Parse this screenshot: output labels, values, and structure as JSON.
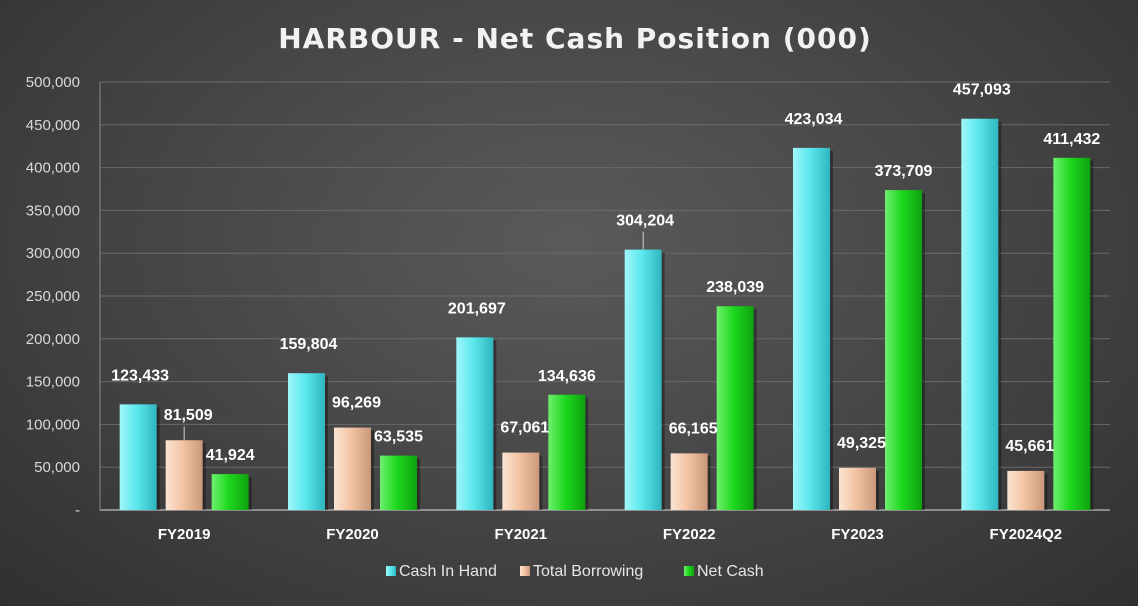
{
  "chart_data": {
    "type": "bar",
    "title": "HARBOUR - Net Cash Position (000)",
    "xlabel": "",
    "ylabel": "",
    "categories": [
      "FY2019",
      "FY2020",
      "FY2021",
      "FY2022",
      "FY2023",
      "FY2024Q2"
    ],
    "series": [
      {
        "name": "Cash In Hand",
        "values": [
          123433,
          159804,
          201697,
          304204,
          423034,
          457093
        ],
        "labels": [
          "123,433",
          "159,804",
          "201,697",
          "304,204",
          "423,034",
          "457,093"
        ],
        "color": "#5ce8ee"
      },
      {
        "name": "Total Borrowing",
        "values": [
          81509,
          96269,
          67061,
          66165,
          49325,
          45661
        ],
        "labels": [
          "81,509",
          "96,269",
          "67,061",
          "66,165",
          "49,325",
          "45,661"
        ],
        "color": "#f3c4a4"
      },
      {
        "name": "Net Cash",
        "values": [
          41924,
          63535,
          134636,
          238039,
          373709,
          411432
        ],
        "labels": [
          "41,924",
          "63,535",
          "134,636",
          "238,039",
          "373,709",
          "411,432"
        ],
        "color": "#1ed81e"
      }
    ],
    "ylim": [
      0,
      500000
    ],
    "yticks": [
      0,
      50000,
      100000,
      150000,
      200000,
      250000,
      300000,
      350000,
      400000,
      450000,
      500000
    ],
    "ytick_labels": [
      "-",
      "50,000",
      "100,000",
      "150,000",
      "200,000",
      "250,000",
      "300,000",
      "350,000",
      "400,000",
      "450,000",
      "500,000"
    ],
    "grid": true,
    "legend_position": "bottom"
  }
}
